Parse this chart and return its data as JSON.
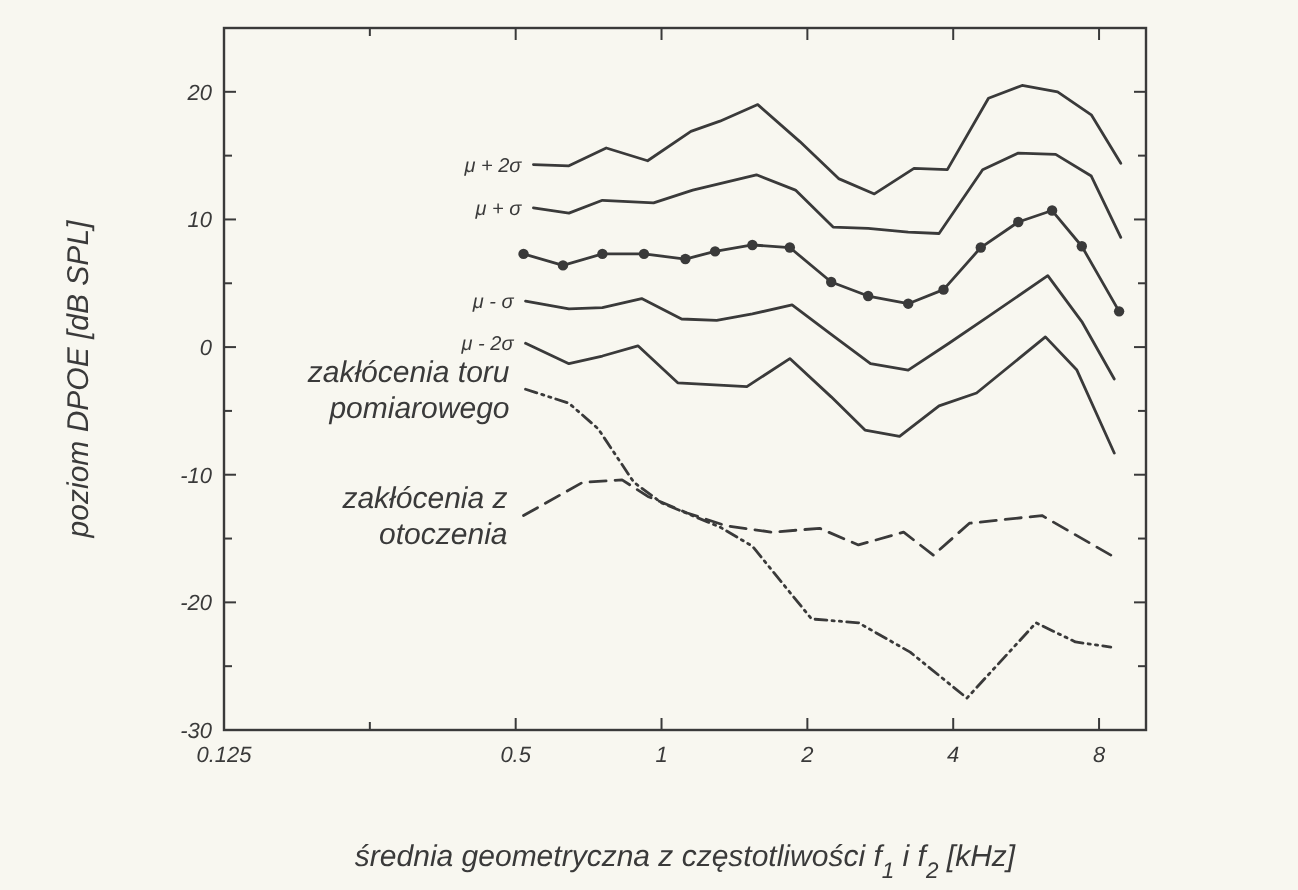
{
  "chart_data": {
    "type": "line",
    "xlabel": "średnia geometryczna z częstotliwości f$_{1}$ i f$_{2}$ [kHz]",
    "ylabel": "poziom  DPOE  [dB SPL]",
    "log": "x",
    "xlim": [
      0.125,
      10
    ],
    "xticks": [
      0.125,
      {
        "value": 0.25,
        "label": null
      },
      0.5,
      1,
      2,
      4,
      8
    ],
    "ylim": [
      -30,
      25
    ],
    "yticks": [
      -30,
      {
        "value": -25,
        "label": null
      },
      -20,
      {
        "value": -15,
        "label": null
      },
      -10,
      {
        "value": -5,
        "label": null
      },
      0,
      {
        "value": 5,
        "label": null
      },
      10,
      {
        "value": 15,
        "label": null
      },
      20
    ],
    "grid": false,
    "legend": false,
    "line_style": "solid",
    "marker": "none",
    "series": [
      {
        "name": "μ + 2σ",
        "color": "#3a3a3a",
        "x": [
          0.544,
          0.644,
          0.769,
          0.936,
          1.15,
          1.32,
          1.58,
          1.93,
          2.32,
          2.75,
          3.32,
          3.89,
          4.73,
          5.55,
          6.57,
          7.71,
          8.87
        ],
        "values": [
          14.3,
          14.2,
          15.6,
          14.6,
          16.9,
          17.7,
          19.0,
          16.1,
          13.2,
          12.0,
          14.0,
          13.9,
          19.5,
          20.5,
          20.0,
          18.2,
          14.4
        ]
      },
      {
        "name": "μ + σ",
        "color": "#3a3a3a",
        "x": [
          0.544,
          0.644,
          0.755,
          0.963,
          1.16,
          1.57,
          1.89,
          2.26,
          2.67,
          3.23,
          3.74,
          4.6,
          5.45,
          6.51,
          7.71,
          8.87
        ],
        "values": [
          10.9,
          10.5,
          11.5,
          11.3,
          12.3,
          13.5,
          12.3,
          9.4,
          9.3,
          9.0,
          8.9,
          13.9,
          15.2,
          15.1,
          13.4,
          8.6
        ]
      },
      {
        "color": "#3a3a3a",
        "marker": "circle",
        "x": [
          0.519,
          0.626,
          0.755,
          0.92,
          1.12,
          1.29,
          1.54,
          1.84,
          2.24,
          2.67,
          3.23,
          3.82,
          4.56,
          5.45,
          6.4,
          7.37,
          8.8
        ],
        "values": [
          7.3,
          6.4,
          7.3,
          7.3,
          6.9,
          7.5,
          8.0,
          7.8,
          5.1,
          4.0,
          3.4,
          4.5,
          7.8,
          9.8,
          10.7,
          7.9,
          2.8
        ]
      },
      {
        "name": "μ - σ",
        "color": "#3a3a3a",
        "x": [
          0.524,
          0.644,
          0.755,
          0.91,
          1.1,
          1.3,
          1.54,
          1.86,
          2.24,
          2.7,
          3.23,
          3.92,
          4.73,
          6.27,
          7.37,
          8.6
        ],
        "values": [
          3.6,
          3.0,
          3.1,
          3.8,
          2.2,
          2.1,
          2.6,
          3.3,
          1.0,
          -1.3,
          -1.8,
          0.3,
          2.4,
          5.6,
          2.0,
          -2.5
        ]
      },
      {
        "name": "μ - 2σ",
        "color": "#3a3a3a",
        "x": [
          0.524,
          0.644,
          0.755,
          0.894,
          1.08,
          1.5,
          1.84,
          2.24,
          2.63,
          3.1,
          3.74,
          4.47,
          6.2,
          7.2,
          8.6
        ],
        "values": [
          0.3,
          -1.3,
          -0.7,
          0.1,
          -2.8,
          -3.1,
          -0.9,
          -3.9,
          -6.5,
          -7.0,
          -4.6,
          -3.6,
          0.8,
          -1.8,
          -8.3
        ]
      },
      {
        "name": "zakłócenia toru pomiarowego",
        "color": "#3a3a3a",
        "line_style": "dotted",
        "x": [
          0.524,
          0.644,
          0.74,
          0.877,
          1.0,
          1.32,
          1.54,
          2.04,
          2.55,
          3.26,
          4.27,
          5.93,
          7.15,
          8.46
        ],
        "values": [
          -3.3,
          -4.4,
          -6.4,
          -10.6,
          -12.2,
          -14.1,
          -15.6,
          -21.3,
          -21.6,
          -23.9,
          -27.5,
          -21.6,
          -23.1,
          -23.5
        ]
      },
      {
        "name": "zakłócenia z otoczenia",
        "color": "#3a3a3a",
        "line_style": "dashed",
        "x": [
          0.519,
          0.687,
          0.829,
          0.937,
          1.13,
          1.36,
          1.69,
          2.12,
          2.55,
          3.16,
          3.64,
          4.32,
          6.1,
          8.46
        ],
        "values": [
          -13.2,
          -10.6,
          -10.4,
          -11.7,
          -13.0,
          -14.0,
          -14.5,
          -14.2,
          -15.5,
          -14.5,
          -16.3,
          -13.8,
          -13.2,
          -16.3
        ]
      }
    ]
  }
}
